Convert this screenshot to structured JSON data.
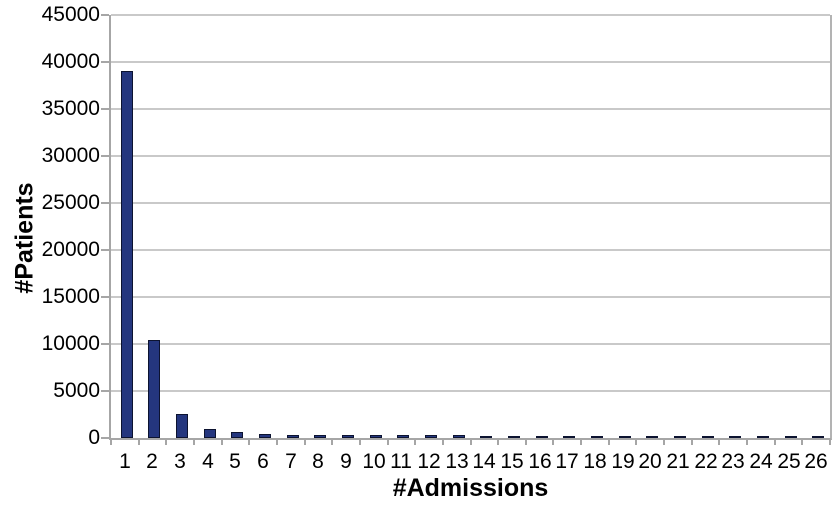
{
  "chart_data": {
    "type": "bar",
    "title": "",
    "xlabel": "#Admissions",
    "ylabel": "#Patients",
    "categories": [
      "1",
      "2",
      "3",
      "4",
      "5",
      "6",
      "7",
      "8",
      "9",
      "10",
      "11",
      "12",
      "13",
      "14",
      "15",
      "16",
      "17",
      "18",
      "19",
      "20",
      "21",
      "22",
      "23",
      "24",
      "25",
      "26"
    ],
    "values": [
      39000,
      10400,
      2600,
      1000,
      600,
      450,
      350,
      320,
      300,
      290,
      280,
      270,
      270,
      260,
      260,
      250,
      250,
      260,
      250,
      260,
      250,
      260,
      250,
      240,
      240,
      250
    ],
    "yticks": [
      0,
      5000,
      10000,
      15000,
      20000,
      25000,
      30000,
      35000,
      40000,
      45000
    ],
    "ylim": [
      0,
      45000
    ],
    "grid": true,
    "legend": "none",
    "bar_color": "#24367e",
    "bar_border_color": "#0c1330",
    "grid_color": "#c9c9c9",
    "axis_color": "#a6a6a6",
    "text_color": "#000000"
  }
}
